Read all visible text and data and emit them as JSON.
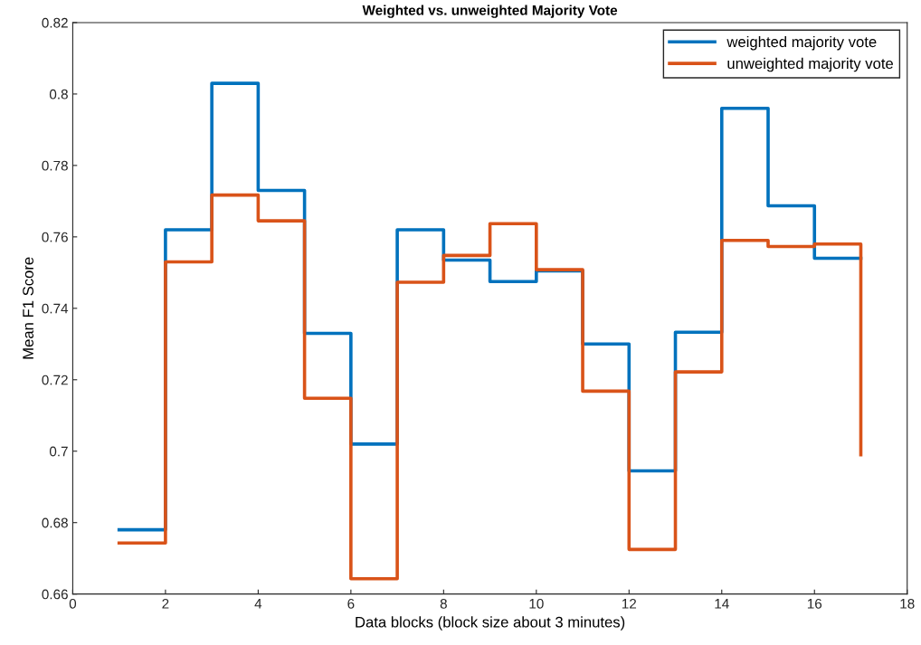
{
  "chart_data": {
    "type": "step",
    "title": "Weighted vs. unweighted Majority Vote",
    "xlabel": "Data blocks (block size about 3 minutes)",
    "ylabel": "Mean F1 Score",
    "x": [
      1,
      2,
      3,
      4,
      5,
      6,
      7,
      8,
      9,
      10,
      11,
      12,
      13,
      14,
      15,
      16,
      17
    ],
    "series": [
      {
        "name": "weighted majority vote",
        "color": "#0072bd",
        "values": [
          0.678,
          0.762,
          0.803,
          0.773,
          0.733,
          0.702,
          0.762,
          0.7535,
          0.7475,
          0.7505,
          0.73,
          0.6945,
          0.7333,
          0.796,
          0.7687,
          0.754,
          0.754
        ]
      },
      {
        "name": "unweighted majority vote",
        "color": "#d95319",
        "values": [
          0.6743,
          0.753,
          0.7717,
          0.7645,
          0.7148,
          0.6643,
          0.7473,
          0.7548,
          0.7637,
          0.7508,
          0.7168,
          0.6725,
          0.7222,
          0.759,
          0.7573,
          0.758,
          0.699
        ]
      }
    ],
    "xlim": [
      0,
      18
    ],
    "xticks": [
      0,
      2,
      4,
      6,
      8,
      10,
      12,
      14,
      16,
      18
    ],
    "ylim": [
      0.66,
      0.82
    ],
    "yticks": [
      0.66,
      0.68,
      0.7,
      0.72,
      0.74,
      0.76,
      0.78,
      0.8,
      0.82
    ],
    "grid": false,
    "legend": "top right"
  }
}
